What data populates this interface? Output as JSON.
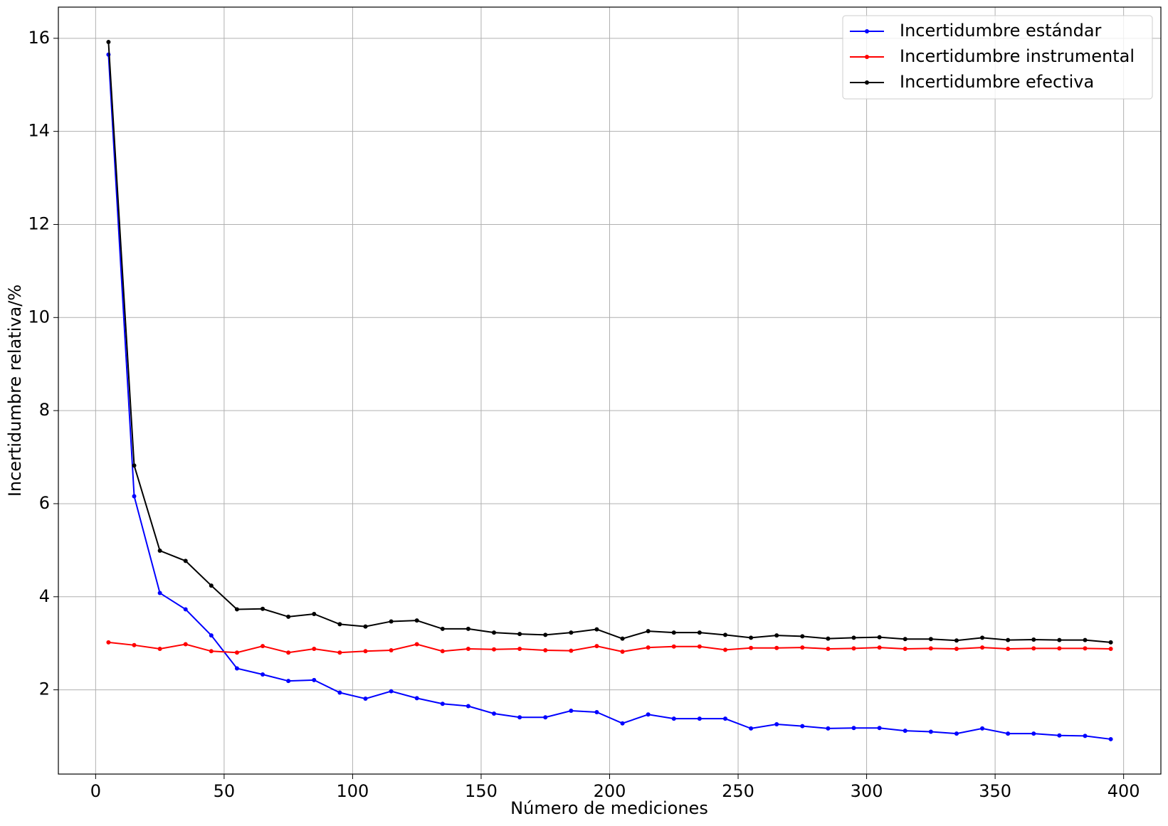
{
  "chart_data": {
    "type": "line",
    "xlabel": "Número de mediciones",
    "ylabel": "Incertidumbre relativa/%",
    "x": [
      5,
      15,
      25,
      35,
      45,
      55,
      65,
      75,
      85,
      95,
      105,
      115,
      125,
      135,
      145,
      155,
      165,
      175,
      185,
      195,
      205,
      215,
      225,
      235,
      245,
      255,
      265,
      275,
      285,
      295,
      305,
      315,
      325,
      335,
      345,
      355,
      365,
      375,
      385,
      395
    ],
    "series": [
      {
        "name": "Incertidumbre estándar",
        "color": "#0000ff",
        "values": [
          15.65,
          6.16,
          4.08,
          3.73,
          3.17,
          2.46,
          2.33,
          2.19,
          2.21,
          1.94,
          1.81,
          1.97,
          1.82,
          1.7,
          1.65,
          1.49,
          1.41,
          1.41,
          1.55,
          1.52,
          1.28,
          1.47,
          1.38,
          1.38,
          1.38,
          1.17,
          1.26,
          1.22,
          1.17,
          1.18,
          1.18,
          1.12,
          1.1,
          1.06,
          1.17,
          1.06,
          1.06,
          1.02,
          1.01,
          0.94
        ]
      },
      {
        "name": "Incertidumbre instrumental",
        "color": "#ff0000",
        "values": [
          3.02,
          2.96,
          2.88,
          2.98,
          2.83,
          2.8,
          2.94,
          2.8,
          2.88,
          2.8,
          2.83,
          2.85,
          2.98,
          2.83,
          2.88,
          2.87,
          2.88,
          2.85,
          2.84,
          2.94,
          2.82,
          2.91,
          2.93,
          2.93,
          2.86,
          2.9,
          2.9,
          2.91,
          2.88,
          2.89,
          2.91,
          2.88,
          2.89,
          2.88,
          2.91,
          2.88,
          2.89,
          2.89,
          2.89,
          2.88
        ]
      },
      {
        "name": "Incertidumbre efectiva",
        "color": "#000000",
        "values": [
          15.92,
          6.82,
          4.99,
          4.77,
          4.24,
          3.73,
          3.74,
          3.57,
          3.63,
          3.41,
          3.36,
          3.47,
          3.49,
          3.31,
          3.31,
          3.23,
          3.2,
          3.18,
          3.23,
          3.3,
          3.1,
          3.26,
          3.23,
          3.23,
          3.18,
          3.12,
          3.17,
          3.15,
          3.1,
          3.12,
          3.13,
          3.09,
          3.09,
          3.06,
          3.12,
          3.07,
          3.08,
          3.07,
          3.07,
          3.02
        ]
      }
    ],
    "xlim": [
      -14.5,
      414.5
    ],
    "xticks": [
      0,
      50,
      100,
      150,
      200,
      250,
      300,
      350,
      400
    ],
    "ylim": [
      0.19,
      16.67
    ],
    "yticks": [
      2,
      4,
      6,
      8,
      10,
      12,
      14,
      16
    ],
    "grid": true,
    "legend": "upper right"
  }
}
